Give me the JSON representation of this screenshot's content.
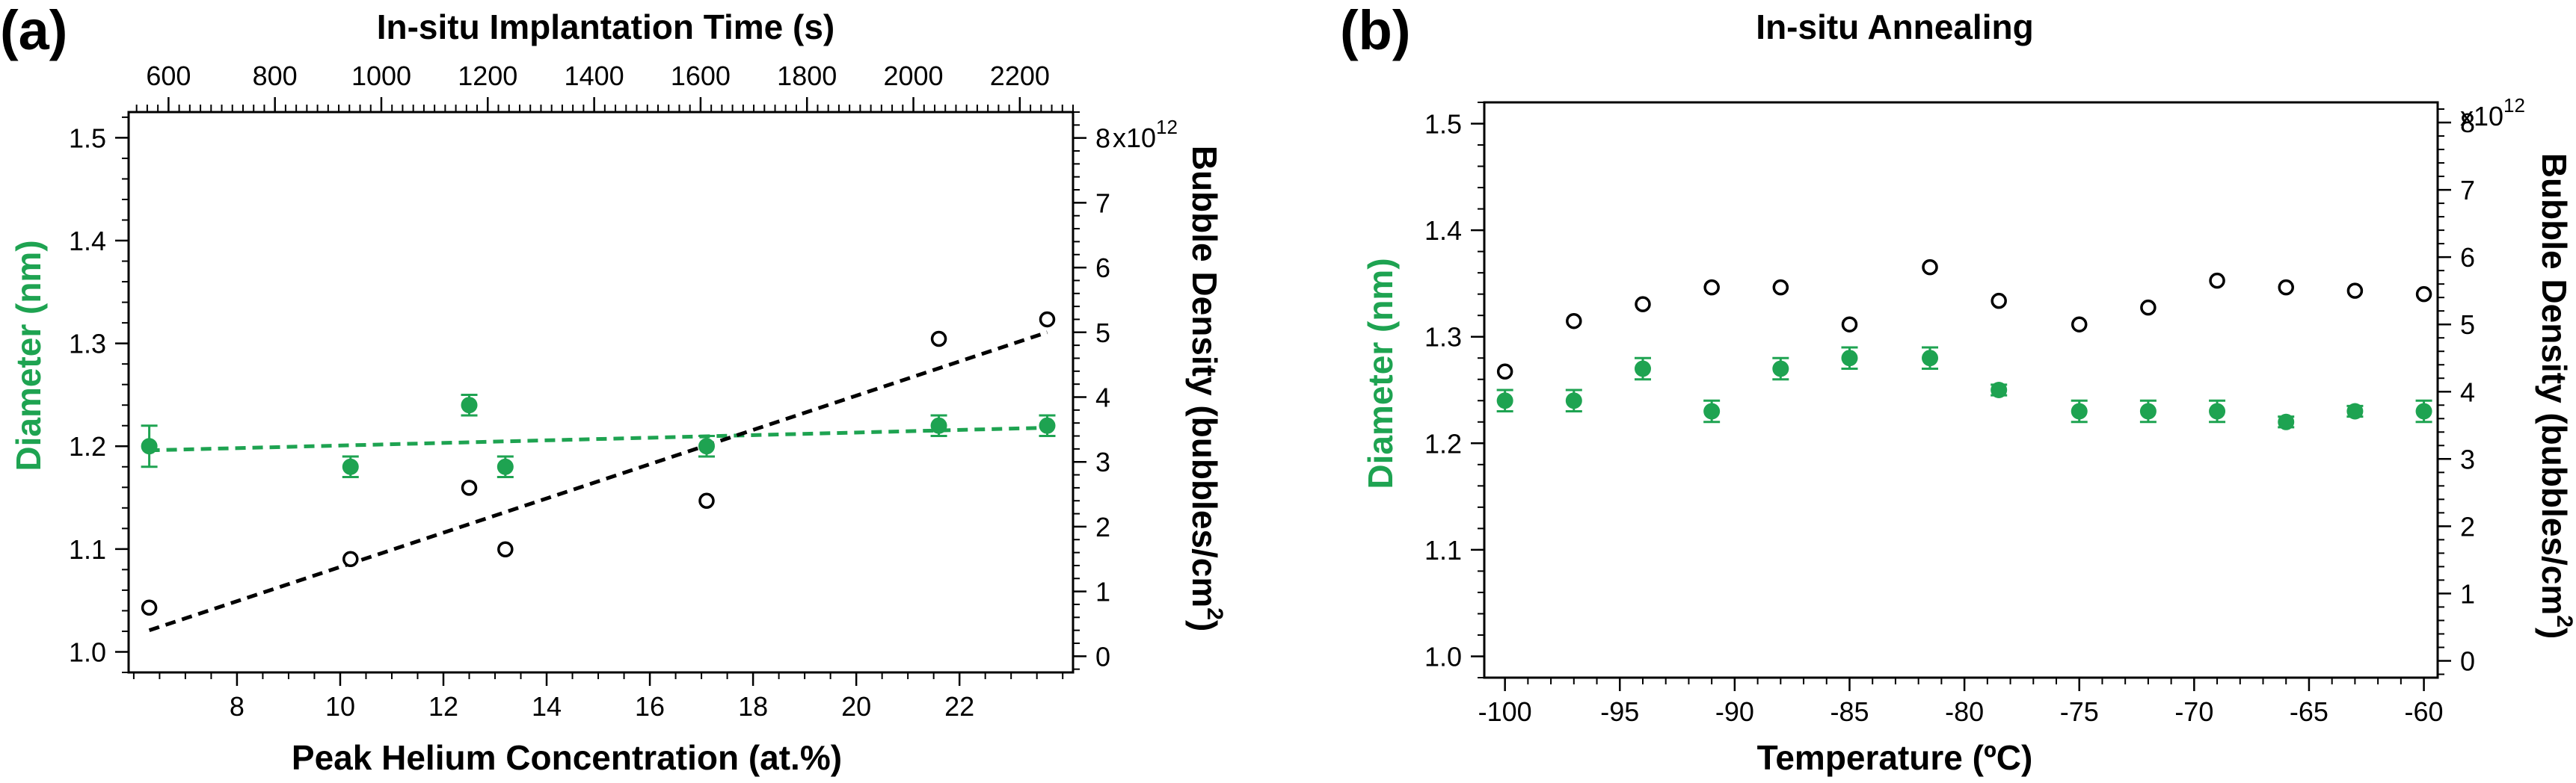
{
  "chart_data": [
    {
      "panel_label": "(a)",
      "type": "scatter",
      "top_axis": {
        "label": "In-situ Implantation Time (s)",
        "range": [
          525,
          2300
        ],
        "ticks": [
          600,
          800,
          1000,
          1200,
          1400,
          1600,
          1800,
          2000,
          2200
        ],
        "tick_labels": [
          "600",
          "800",
          "1000",
          "1200",
          "1400",
          "1600",
          "1800",
          "2000",
          "2200"
        ]
      },
      "x_axis": {
        "label": "Peak Helium Concentration (at.%)",
        "range": [
          5.9,
          24.2
        ],
        "ticks": [
          8,
          10,
          12,
          14,
          16,
          18,
          20,
          22
        ],
        "tick_labels": [
          "8",
          "10",
          "12",
          "14",
          "16",
          "18",
          "20",
          "22"
        ]
      },
      "y_left": {
        "label": "Diameter (nm)",
        "range": [
          0.98,
          1.525
        ],
        "ticks": [
          1.0,
          1.1,
          1.2,
          1.3,
          1.4,
          1.5
        ],
        "tick_labels": [
          "1.0",
          "1.1",
          "1.2",
          "1.3",
          "1.4",
          "1.5"
        ]
      },
      "y_right": {
        "label": "Bubble Density (bubbles/cm",
        "label_superscript": "2",
        "label_close": ")",
        "range": [
          -0.25,
          8.4
        ],
        "ticks": [
          0,
          1,
          2,
          3,
          4,
          5,
          6,
          7,
          8
        ],
        "tick_labels": [
          "0",
          "1",
          "2",
          "3",
          "4",
          "5",
          "6",
          "7",
          "8"
        ],
        "multiplier": "x10",
        "multiplier_exponent": "12"
      },
      "series": [
        {
          "name": "Diameter",
          "axis": "left",
          "marker": "filled-circle",
          "color": "#1ea351",
          "x": [
            6.3,
            10.2,
            12.5,
            13.2,
            17.1,
            21.6,
            23.7
          ],
          "y": [
            1.2,
            1.18,
            1.24,
            1.18,
            1.2,
            1.22,
            1.22
          ],
          "err": [
            0.02,
            0.01,
            0.01,
            0.01,
            0.01,
            0.01,
            0.01
          ]
        },
        {
          "name": "Bubble Density",
          "axis": "right",
          "marker": "open-circle",
          "color": "#000000",
          "x": [
            6.3,
            10.2,
            12.5,
            13.2,
            17.1,
            21.6,
            23.7
          ],
          "y": [
            0.75,
            1.5,
            2.6,
            1.65,
            2.4,
            4.9,
            5.2
          ]
        }
      ],
      "fits": [
        {
          "name": "Diameter fit",
          "axis": "left",
          "style": "dashed",
          "color": "#1ea351",
          "x": [
            6.3,
            23.7
          ],
          "y": [
            1.196,
            1.218
          ]
        },
        {
          "name": "Bubble Density fit",
          "axis": "right",
          "style": "dashed",
          "color": "#000000",
          "x": [
            6.3,
            23.7
          ],
          "y": [
            0.4,
            5.0
          ]
        }
      ]
    },
    {
      "panel_label": "(b)",
      "type": "scatter",
      "title": "In-situ Annealing",
      "x_axis": {
        "label": "Temperature (ºC)",
        "range": [
          -100.9,
          -59.4
        ],
        "ticks": [
          -100,
          -95,
          -90,
          -85,
          -80,
          -75,
          -70,
          -65,
          -60
        ],
        "tick_labels": [
          "-100",
          "-95",
          "-90",
          "-85",
          "-80",
          "-75",
          "-70",
          "-65",
          "-60"
        ]
      },
      "y_left": {
        "label": "Diameter (nm)",
        "range": [
          0.98,
          1.52
        ],
        "ticks": [
          1.0,
          1.1,
          1.2,
          1.3,
          1.4,
          1.5
        ],
        "tick_labels": [
          "1.0",
          "1.1",
          "1.2",
          "1.3",
          "1.4",
          "1.5"
        ]
      },
      "y_right": {
        "label": "Bubble Density (bubbles/cm",
        "label_superscript": "2",
        "label_close": ")",
        "range": [
          -0.25,
          8.3
        ],
        "ticks": [
          0,
          1,
          2,
          3,
          4,
          5,
          6,
          7,
          8
        ],
        "tick_labels": [
          "0",
          "1",
          "2",
          "3",
          "4",
          "5",
          "6",
          "7",
          "8"
        ],
        "multiplier": "x10",
        "multiplier_exponent": "12"
      },
      "series": [
        {
          "name": "Diameter",
          "axis": "left",
          "marker": "filled-circle",
          "color": "#1ea351",
          "x": [
            -100,
            -97,
            -94,
            -91,
            -88,
            -85,
            -81.5,
            -78.5,
            -75,
            -72,
            -69,
            -66,
            -63,
            -60
          ],
          "y": [
            1.24,
            1.24,
            1.27,
            1.23,
            1.27,
            1.28,
            1.28,
            1.25,
            1.23,
            1.23,
            1.23,
            1.22,
            1.23,
            1.23
          ],
          "err": [
            0.01,
            0.01,
            0.01,
            0.01,
            0.01,
            0.01,
            0.01,
            0.005,
            0.01,
            0.01,
            0.01,
            0.005,
            0.005,
            0.01
          ]
        },
        {
          "name": "Bubble Density",
          "axis": "right",
          "marker": "open-circle",
          "color": "#000000",
          "x": [
            -100,
            -97,
            -94,
            -91,
            -88,
            -85,
            -81.5,
            -78.5,
            -75,
            -72,
            -69,
            -66,
            -63,
            -60
          ],
          "y": [
            4.3,
            5.05,
            5.3,
            5.55,
            5.55,
            5.0,
            5.85,
            5.35,
            5.0,
            5.25,
            5.65,
            5.55,
            5.5,
            5.45
          ]
        }
      ]
    }
  ]
}
